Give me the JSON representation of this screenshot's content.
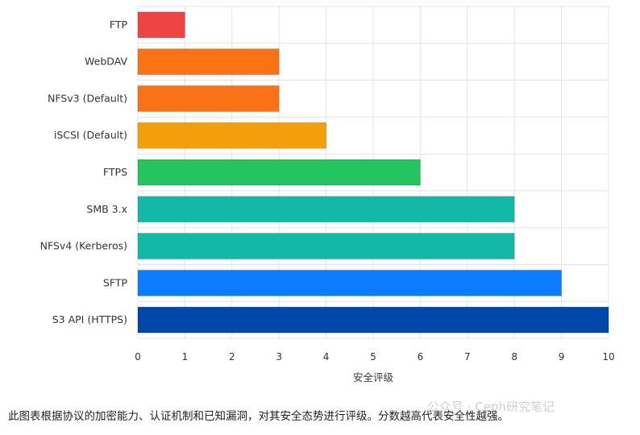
{
  "chart_data": {
    "type": "bar",
    "orientation": "horizontal",
    "categories": [
      "FTP",
      "WebDAV",
      "NFSv3 (Default)",
      "iSCSI (Default)",
      "FTPS",
      "SMB 3.x",
      "NFSv4 (Kerberos)",
      "SFTP",
      "S3 API (HTTPS)"
    ],
    "values": [
      1,
      3,
      3,
      4,
      6,
      8,
      8,
      9,
      10
    ],
    "colors": [
      "#ef4444",
      "#f97316",
      "#f97316",
      "#f59e0b",
      "#22c55e",
      "#14b8a6",
      "#14b8a6",
      "#0a7cff",
      "#0047ab"
    ],
    "xlabel": "安全评级",
    "ylabel": "",
    "xlim": [
      0,
      10
    ],
    "xticks": [
      0,
      1,
      2,
      3,
      4,
      5,
      6,
      7,
      8,
      9,
      10
    ],
    "grid": true
  },
  "caption": "此图表根据协议的加密能力、认证机制和已知漏洞，对其安全态势进行评级。分数越高代表安全性越强。",
  "watermark": "公众号 · Ceph研究笔记"
}
